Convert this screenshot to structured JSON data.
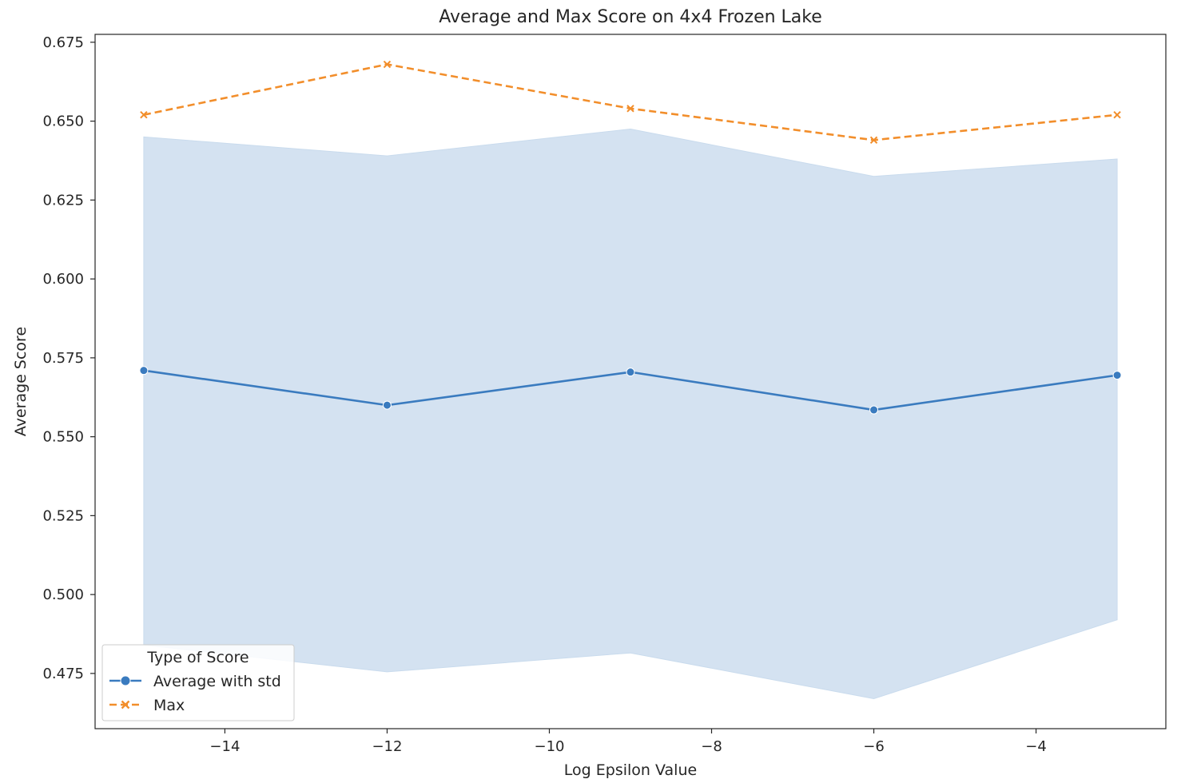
{
  "chart_data": {
    "type": "line",
    "title": "Average and Max Score on 4x4 Frozen Lake",
    "xlabel": "Log Epsilon Value",
    "ylabel": "Average Score",
    "xlim": [
      -15.6,
      -2.4
    ],
    "ylim": [
      0.4575,
      0.6775
    ],
    "xticks": [
      -14,
      -12,
      -10,
      -8,
      -6,
      -4
    ],
    "xtick_labels": [
      "−14",
      "−12",
      "−10",
      "−8",
      "−6",
      "−4"
    ],
    "yticks": [
      0.475,
      0.5,
      0.525,
      0.55,
      0.575,
      0.6,
      0.625,
      0.65,
      0.675
    ],
    "ytick_labels": [
      "0.475",
      "0.500",
      "0.525",
      "0.550",
      "0.575",
      "0.600",
      "0.625",
      "0.650",
      "0.675"
    ],
    "x": [
      -15,
      -12,
      -9,
      -6,
      -3
    ],
    "series": [
      {
        "name": "Average with std",
        "values": [
          0.571,
          0.56,
          0.5705,
          0.5585,
          0.5695
        ],
        "band_upper": [
          0.645,
          0.639,
          0.6475,
          0.6325,
          0.638
        ],
        "band_lower": [
          0.484,
          0.4755,
          0.4815,
          0.467,
          0.492
        ],
        "color": "#3a7bbf",
        "band_color": "#c9dbed",
        "style": "solid",
        "marker": "circle"
      },
      {
        "name": "Max",
        "values": [
          0.652,
          0.668,
          0.654,
          0.644,
          0.652
        ],
        "color": "#f28e2b",
        "style": "dashed",
        "marker": "x"
      }
    ],
    "grid": false,
    "legend": {
      "title": "Type of Score",
      "placement": "lower-left"
    }
  }
}
